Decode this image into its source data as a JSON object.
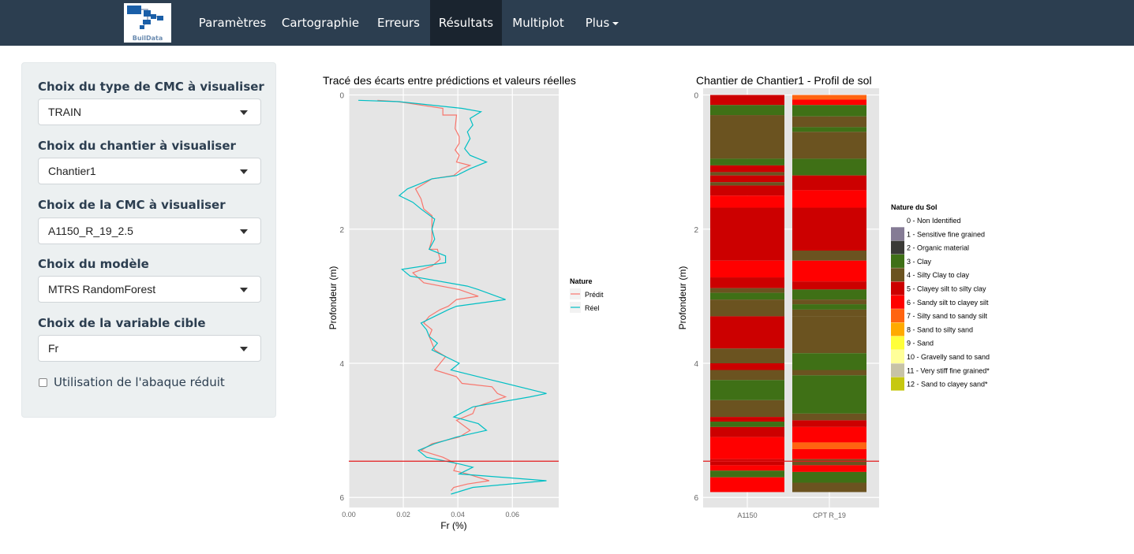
{
  "navbar": {
    "logo_text": "BuilData",
    "items": [
      {
        "label": "Paramètres"
      },
      {
        "label": "Cartographie"
      },
      {
        "label": "Erreurs"
      },
      {
        "label": "Résultats"
      },
      {
        "label": "Multiplot"
      },
      {
        "label": "Plus"
      }
    ],
    "active": "Résultats",
    "color": "#2c3e50"
  },
  "sidebar": {
    "fields": [
      {
        "label": "Choix du type de CMC à visualiser",
        "value": "TRAIN"
      },
      {
        "label": "Choix du chantier à visualiser",
        "value": "Chantier1"
      },
      {
        "label": "Choix de la CMC à visualiser",
        "value": "A1150_R_19_2.5"
      },
      {
        "label": "Choix du modèle",
        "value": "MTRS RandomForest"
      },
      {
        "label": "Choix de la variable cible",
        "value": "Fr"
      }
    ],
    "checkbox": {
      "label": "Utilisation de l'abaque réduit",
      "checked": false
    }
  },
  "chart_data": [
    {
      "type": "line",
      "title": "Tracé des écarts entre prédictions et valeurs réelles",
      "xlabel": "Fr (%)",
      "ylabel": "Profondeur (m)",
      "xlim": [
        0,
        0.077
      ],
      "ylim": [
        6.15,
        -0.1
      ],
      "y_reversed": true,
      "xticks": [
        "0.00",
        "0.02",
        "0.04",
        "0.06"
      ],
      "xtick_values": [
        0,
        0.02,
        0.04,
        0.06
      ],
      "yticks": [
        "0",
        "2",
        "4",
        "6"
      ],
      "ytick_values": [
        0,
        2,
        4,
        6
      ],
      "legend_title": "Nature",
      "legend_position": "right",
      "hline": {
        "y": 5.46,
        "color": "#e41a1c"
      },
      "series": [
        {
          "name": "Prédit",
          "color": "#f8766d",
          "points": [
            [
              0.0105,
              0.08
            ],
            [
              0.018,
              0.1
            ],
            [
              0.0345,
              0.2
            ],
            [
              0.0345,
              0.3
            ],
            [
              0.0395,
              0.3
            ],
            [
              0.039,
              0.5
            ],
            [
              0.0405,
              0.62
            ],
            [
              0.0405,
              0.72
            ],
            [
              0.039,
              0.82
            ],
            [
              0.0405,
              0.9
            ],
            [
              0.0395,
              1.0
            ],
            [
              0.0445,
              1.05
            ],
            [
              0.0415,
              1.1
            ],
            [
              0.0385,
              1.2
            ],
            [
              0.0305,
              1.25
            ],
            [
              0.0245,
              1.4
            ],
            [
              0.0265,
              1.55
            ],
            [
              0.0275,
              1.7
            ],
            [
              0.0305,
              1.8
            ],
            [
              0.0305,
              2.0
            ],
            [
              0.0305,
              2.15
            ],
            [
              0.0295,
              2.3
            ],
            [
              0.0325,
              2.3
            ],
            [
              0.0335,
              2.45
            ],
            [
              0.0305,
              2.55
            ],
            [
              0.0235,
              2.65
            ],
            [
              0.0275,
              2.8
            ],
            [
              0.0405,
              2.9
            ],
            [
              0.0475,
              3.0
            ],
            [
              0.0395,
              3.05
            ],
            [
              0.0365,
              3.15
            ],
            [
              0.0335,
              3.2
            ],
            [
              0.0295,
              3.3
            ],
            [
              0.0275,
              3.4
            ],
            [
              0.0305,
              3.5
            ],
            [
              0.0295,
              3.6
            ],
            [
              0.0315,
              3.8
            ],
            [
              0.0355,
              3.9
            ],
            [
              0.0315,
              4.1
            ],
            [
              0.0395,
              4.2
            ],
            [
              0.0415,
              4.3
            ],
            [
              0.0525,
              4.35
            ],
            [
              0.0545,
              4.45
            ],
            [
              0.0575,
              4.5
            ],
            [
              0.0465,
              4.65
            ],
            [
              0.0455,
              4.75
            ],
            [
              0.0395,
              4.85
            ],
            [
              0.0445,
              5.0
            ],
            [
              0.0405,
              5.1
            ],
            [
              0.0305,
              5.2
            ],
            [
              0.0265,
              5.3
            ],
            [
              0.0305,
              5.35
            ],
            [
              0.0345,
              5.4
            ],
            [
              0.0395,
              5.5
            ],
            [
              0.0385,
              5.6
            ],
            [
              0.0435,
              5.65
            ],
            [
              0.0515,
              5.75
            ],
            [
              0.0435,
              5.8
            ],
            [
              0.0385,
              5.85
            ],
            [
              0.0375,
              5.9
            ]
          ]
        },
        {
          "name": "Réel",
          "color": "#00bfc4",
          "points": [
            [
              0.0035,
              0.08
            ],
            [
              0.0185,
              0.1
            ],
            [
              0.0415,
              0.2
            ],
            [
              0.0485,
              0.25
            ],
            [
              0.0445,
              0.35
            ],
            [
              0.0455,
              0.45
            ],
            [
              0.0435,
              0.55
            ],
            [
              0.0445,
              0.65
            ],
            [
              0.0425,
              0.8
            ],
            [
              0.0445,
              0.9
            ],
            [
              0.0505,
              1.0
            ],
            [
              0.0445,
              1.1
            ],
            [
              0.0395,
              1.2
            ],
            [
              0.0305,
              1.25
            ],
            [
              0.0215,
              1.4
            ],
            [
              0.0185,
              1.5
            ],
            [
              0.0235,
              1.6
            ],
            [
              0.0265,
              1.7
            ],
            [
              0.0315,
              1.85
            ],
            [
              0.0305,
              2.0
            ],
            [
              0.0315,
              2.15
            ],
            [
              0.0295,
              2.3
            ],
            [
              0.0355,
              2.4
            ],
            [
              0.0355,
              2.5
            ],
            [
              0.0195,
              2.6
            ],
            [
              0.0225,
              2.7
            ],
            [
              0.0435,
              2.85
            ],
            [
              0.0475,
              2.9
            ],
            [
              0.0575,
              3.05
            ],
            [
              0.0395,
              3.15
            ],
            [
              0.0365,
              3.2
            ],
            [
              0.0315,
              3.3
            ],
            [
              0.0265,
              3.4
            ],
            [
              0.0285,
              3.5
            ],
            [
              0.0295,
              3.6
            ],
            [
              0.0325,
              3.7
            ],
            [
              0.0305,
              3.8
            ],
            [
              0.0405,
              4.0
            ],
            [
              0.0375,
              4.1
            ],
            [
              0.0525,
              4.25
            ],
            [
              0.0725,
              4.45
            ],
            [
              0.0665,
              4.5
            ],
            [
              0.0455,
              4.65
            ],
            [
              0.0385,
              4.8
            ],
            [
              0.0475,
              4.9
            ],
            [
              0.0505,
              5.0
            ],
            [
              0.0395,
              5.1
            ],
            [
              0.0315,
              5.2
            ],
            [
              0.0255,
              5.3
            ],
            [
              0.0285,
              5.4
            ],
            [
              0.0405,
              5.5
            ],
            [
              0.0455,
              5.55
            ],
            [
              0.0405,
              5.65
            ],
            [
              0.0725,
              5.75
            ],
            [
              0.0455,
              5.85
            ],
            [
              0.0375,
              5.95
            ]
          ]
        }
      ]
    },
    {
      "type": "bar",
      "title": "Chantier de  Chantier1  - Profil de sol",
      "xlabel": "",
      "ylabel": "Profondeur (m)",
      "ylim": [
        6.15,
        -0.1
      ],
      "y_reversed": true,
      "yticks": [
        "0",
        "2",
        "4",
        "6"
      ],
      "ytick_values": [
        0,
        2,
        4,
        6
      ],
      "categories": [
        "A1150",
        "CPT R_19"
      ],
      "hline": {
        "y": 5.46,
        "color": "#e41a1c"
      },
      "legend_title": "Nature du Sol",
      "legend_position": "right",
      "legend": [
        {
          "label": "0 - Non Identified",
          "color": "#ffffff"
        },
        {
          "label": "1 - Sensitive fine grained",
          "color": "#857b95"
        },
        {
          "label": "2 -  Organic material",
          "color": "#3a3a36"
        },
        {
          "label": "3 - Clay",
          "color": "#3f7016"
        },
        {
          "label": "4 - Silty Clay to clay",
          "color": "#6b5320"
        },
        {
          "label": "5 - Clayey silt to silty clay",
          "color": "#cc0000"
        },
        {
          "label": "6 - Sandy silt to clayey silt",
          "color": "#ff0000"
        },
        {
          "label": "7 - Silty sand to sandy silt",
          "color": "#ff6410"
        },
        {
          "label": "8 - Sand to silty sand",
          "color": "#ffaa00"
        },
        {
          "label": "9 - Sand",
          "color": "#ffff3a"
        },
        {
          "label": "10 - Gravelly sand to sand",
          "color": "#ffff99"
        },
        {
          "label": "11 - Very stiff fine grained*",
          "color": "#c7c3a7"
        },
        {
          "label": "12 - Sand to clayey sand*",
          "color": "#c6c810"
        }
      ],
      "columns": [
        {
          "name": "A1150",
          "layers": [
            [
              0,
              0.15,
              "#cc0000"
            ],
            [
              0.15,
              0.3,
              "#3f7016"
            ],
            [
              0.3,
              0.95,
              "#6b5320"
            ],
            [
              0.95,
              1.05,
              "#3f7016"
            ],
            [
              0.05,
              0,
              "#000"
            ],
            [
              1.05,
              1.15,
              "#cc0000"
            ],
            [
              1.15,
              1.2,
              "#6b5320"
            ],
            [
              1.2,
              1.3,
              "#cc0000"
            ],
            [
              1.3,
              1.35,
              "#6b5320"
            ],
            [
              1.35,
              1.5,
              "#cc0000"
            ],
            [
              1.5,
              1.68,
              "#ff0000"
            ],
            [
              1.68,
              2.47,
              "#cc0000"
            ],
            [
              2.47,
              2.72,
              "#ff0000"
            ],
            [
              2.72,
              2.88,
              "#cc0000"
            ],
            [
              2.88,
              2.95,
              "#6b5320"
            ],
            [
              2.95,
              3.05,
              "#3f7016"
            ],
            [
              3.05,
              3.3,
              "#6b5320"
            ],
            [
              3.3,
              3.78,
              "#cc0000"
            ],
            [
              3.78,
              4.0,
              "#6b5320"
            ],
            [
              4.0,
              4.1,
              "#cc0000"
            ],
            [
              4.1,
              4.25,
              "#6b5320"
            ],
            [
              4.25,
              4.55,
              "#3f7016"
            ],
            [
              4.55,
              4.8,
              "#6b5320"
            ],
            [
              4.8,
              4.87,
              "#cc0000"
            ],
            [
              4.87,
              4.95,
              "#3f7016"
            ],
            [
              4.95,
              5.1,
              "#cc0000"
            ],
            [
              5.1,
              5.43,
              "#ff0000"
            ],
            [
              5.43,
              5.52,
              "#cc0000"
            ],
            [
              5.52,
              5.6,
              "#ff0000"
            ],
            [
              5.6,
              5.7,
              "#3f7016"
            ],
            [
              5.7,
              5.92,
              "#ff0000"
            ]
          ]
        },
        {
          "name": "CPT R_19",
          "layers": [
            [
              0,
              0.07,
              "#ff6410"
            ],
            [
              0.07,
              0.15,
              "#ff0000"
            ],
            [
              0.15,
              0.32,
              "#3f7016"
            ],
            [
              0.32,
              0.48,
              "#6b5320"
            ],
            [
              0.48,
              0.55,
              "#3f7016"
            ],
            [
              0.55,
              0.95,
              "#6b5320"
            ],
            [
              0.95,
              1.2,
              "#3f7016"
            ],
            [
              1.2,
              1.42,
              "#cc0000"
            ],
            [
              1.42,
              1.68,
              "#ff0000"
            ],
            [
              1.68,
              2.32,
              "#cc0000"
            ],
            [
              2.32,
              2.47,
              "#6b5320"
            ],
            [
              2.47,
              2.78,
              "#ff0000"
            ],
            [
              2.78,
              2.9,
              "#cc0000"
            ],
            [
              2.9,
              3.05,
              "#3f7016"
            ],
            [
              3.05,
              3.12,
              "#6b5320"
            ],
            [
              3.12,
              3.2,
              "#3f7016"
            ],
            [
              3.2,
              3.3,
              "#6b5320"
            ],
            [
              3.3,
              3.85,
              "#6b5320"
            ],
            [
              3.85,
              4.1,
              "#3f7016"
            ],
            [
              4.1,
              4.18,
              "#6b5320"
            ],
            [
              4.18,
              4.75,
              "#3f7016"
            ],
            [
              4.75,
              4.85,
              "#6b5320"
            ],
            [
              4.85,
              4.95,
              "#cc0000"
            ],
            [
              4.95,
              5.18,
              "#ff0000"
            ],
            [
              5.18,
              5.28,
              "#ff6410"
            ],
            [
              5.28,
              5.43,
              "#ff0000"
            ],
            [
              5.43,
              5.52,
              "#6b5320"
            ],
            [
              5.52,
              5.62,
              "#ff0000"
            ],
            [
              5.62,
              5.78,
              "#3f7016"
            ],
            [
              5.78,
              5.92,
              "#6b5320"
            ]
          ]
        }
      ]
    }
  ]
}
